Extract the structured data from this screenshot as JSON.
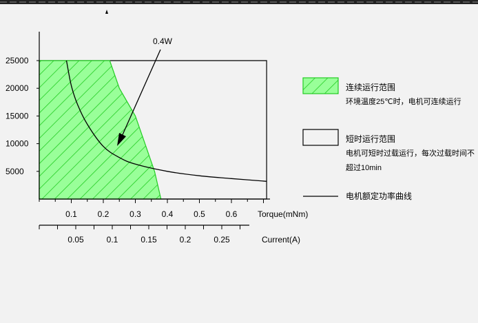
{
  "chart_data": {
    "type": "area",
    "y_axis": {
      "ticks": [
        25000,
        20000,
        15000,
        10000,
        5000
      ],
      "tick_labels": [
        "25000",
        "20000",
        "15000",
        "10000",
        "5000"
      ]
    },
    "x_axis_torque": {
      "label": "Torque(mNm)",
      "ticks": [
        0.1,
        0.2,
        0.3,
        0.4,
        0.5,
        0.6
      ],
      "tick_labels": [
        "0.1",
        "0.2",
        "0.3",
        "0.4",
        "0.5",
        "0.6"
      ]
    },
    "x_axis_current": {
      "label": "Current(A)",
      "ticks": [
        0.05,
        0.1,
        0.15,
        0.2,
        0.25
      ],
      "tick_labels": [
        "0.05",
        "0.1",
        "0.15",
        "0.2",
        "0.25"
      ]
    },
    "continuous_region": [
      [
        0,
        25000
      ],
      [
        0.22,
        25000
      ],
      [
        0.25,
        20000
      ],
      [
        0.3,
        15000
      ],
      [
        0.33,
        10000
      ],
      [
        0.36,
        5000
      ],
      [
        0.38,
        0
      ],
      [
        0,
        0
      ]
    ],
    "short_time_region": [
      [
        0,
        25000
      ],
      [
        0.71,
        25000
      ],
      [
        0.71,
        0
      ],
      [
        0,
        0
      ]
    ],
    "rated_power_curve": {
      "power_label": "0.4W",
      "points": [
        [
          0.085,
          25000
        ],
        [
          0.1,
          20500
        ],
        [
          0.12,
          17000
        ],
        [
          0.15,
          13500
        ],
        [
          0.2,
          9500
        ],
        [
          0.25,
          7500
        ],
        [
          0.3,
          6300
        ],
        [
          0.4,
          5000
        ],
        [
          0.5,
          4200
        ],
        [
          0.6,
          3700
        ],
        [
          0.71,
          3200
        ]
      ]
    },
    "legend": [
      {
        "key": "continuous",
        "label": "连续运行范围",
        "desc": "环境温度25℃时，电机可连续运行",
        "swatch": "hatch-green"
      },
      {
        "key": "short_time",
        "label": "短时运行范围",
        "desc": "电机可短时过载运行，每次过载时间不",
        "desc2": "超过10min",
        "swatch": "box"
      },
      {
        "key": "rated_power",
        "label": "电机额定功率曲线",
        "swatch": "line"
      }
    ],
    "colors": {
      "hatch": "#22cc22",
      "fill": "#99ff99",
      "curve": "#000000",
      "background": "#f2f2f2"
    }
  }
}
